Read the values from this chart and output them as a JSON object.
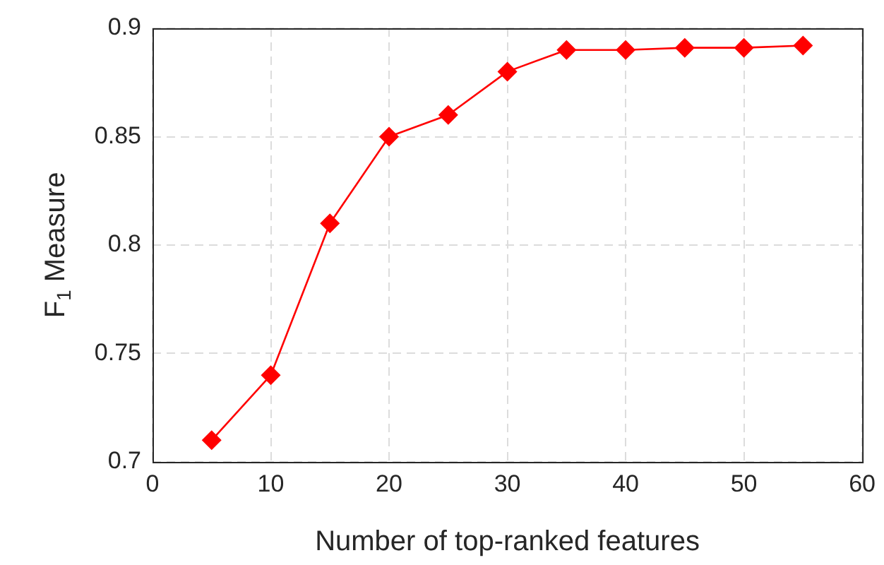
{
  "chart_data": {
    "type": "line",
    "xlabel": "Number of top-ranked features",
    "ylabel": "F$_{1}$ Measure",
    "x": [
      5,
      10,
      15,
      20,
      25,
      30,
      35,
      40,
      45,
      50,
      55
    ],
    "series": [
      {
        "color": "#ff0000",
        "values": [
          0.71,
          0.74,
          0.81,
          0.85,
          0.86,
          0.88,
          0.89,
          0.89,
          0.891,
          0.891,
          0.892
        ]
      }
    ],
    "xlim": [
      0,
      60
    ],
    "xticks": [
      0,
      10,
      20,
      30,
      40,
      50,
      60
    ],
    "ylim": [
      0.7,
      0.9
    ],
    "yticks": [
      0.7,
      0.75,
      0.8,
      0.85,
      0.9
    ],
    "grid": true,
    "legend": false,
    "marker": "diamond",
    "line_style": "solid"
  }
}
